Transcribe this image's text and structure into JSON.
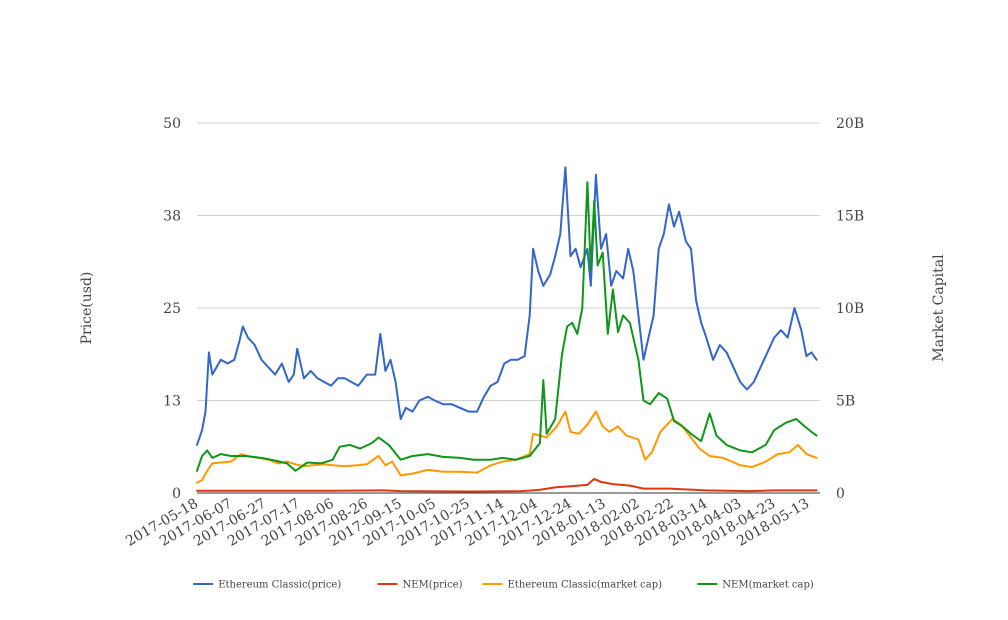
{
  "chart_data": {
    "type": "line",
    "ylabel": "Price(usd)",
    "y2label": "Market Capital",
    "ylim": [
      0,
      50
    ],
    "y2lim": [
      0,
      20000000000
    ],
    "yticks": [
      "0",
      "13",
      "25",
      "38",
      "50"
    ],
    "y2ticks": [
      "0",
      "5B",
      "10B",
      "15B",
      "20B"
    ],
    "xlim": [
      "2017-05-18",
      "2018-05-20"
    ],
    "xticks": [
      "2017-05-18",
      "2017-06-07",
      "2017-06-27",
      "2017-07-17",
      "2017-08-06",
      "2017-08-26",
      "2017-09-15",
      "2017-10-05",
      "2017-10-25",
      "2017-11-14",
      "2017-12-04",
      "2017-12-24",
      "2018-01-13",
      "2018-02-02",
      "2018-02-22",
      "2018-03-14",
      "2018-04-03",
      "2018-04-23",
      "2018-05-13"
    ],
    "grid": true,
    "legend_position": "bottom",
    "series": [
      {
        "name": "Ethereum Classic(price)",
        "axis": "left",
        "color": "#3366cc",
        "points": [
          [
            "2017-05-18",
            6.5
          ],
          [
            "2017-05-21",
            8.5
          ],
          [
            "2017-05-23",
            11
          ],
          [
            "2017-05-25",
            19
          ],
          [
            "2017-05-27",
            16
          ],
          [
            "2017-06-01",
            18
          ],
          [
            "2017-06-05",
            17.5
          ],
          [
            "2017-06-09",
            18
          ],
          [
            "2017-06-12",
            20.5
          ],
          [
            "2017-06-14",
            22.5
          ],
          [
            "2017-06-17",
            21
          ],
          [
            "2017-06-21",
            20
          ],
          [
            "2017-06-25",
            18
          ],
          [
            "2017-06-29",
            17
          ],
          [
            "2017-07-03",
            16
          ],
          [
            "2017-07-07",
            17.5
          ],
          [
            "2017-07-11",
            15
          ],
          [
            "2017-07-14",
            16
          ],
          [
            "2017-07-16",
            19.5
          ],
          [
            "2017-07-20",
            15.5
          ],
          [
            "2017-07-24",
            16.5
          ],
          [
            "2017-07-28",
            15.5
          ],
          [
            "2017-08-01",
            15
          ],
          [
            "2017-08-05",
            14.5
          ],
          [
            "2017-08-09",
            15.5
          ],
          [
            "2017-08-13",
            15.5
          ],
          [
            "2017-08-17",
            15
          ],
          [
            "2017-08-21",
            14.5
          ],
          [
            "2017-08-26",
            16
          ],
          [
            "2017-08-31",
            16
          ],
          [
            "2017-09-03",
            21.5
          ],
          [
            "2017-09-06",
            16.5
          ],
          [
            "2017-09-09",
            18
          ],
          [
            "2017-09-12",
            15
          ],
          [
            "2017-09-15",
            10
          ],
          [
            "2017-09-18",
            11.5
          ],
          [
            "2017-09-22",
            11
          ],
          [
            "2017-09-26",
            12.5
          ],
          [
            "2017-10-01",
            13
          ],
          [
            "2017-10-05",
            12.5
          ],
          [
            "2017-10-10",
            12
          ],
          [
            "2017-10-15",
            12
          ],
          [
            "2017-10-20",
            11.5
          ],
          [
            "2017-10-25",
            11
          ],
          [
            "2017-10-30",
            11
          ],
          [
            "2017-11-03",
            13
          ],
          [
            "2017-11-07",
            14.5
          ],
          [
            "2017-11-11",
            15
          ],
          [
            "2017-11-15",
            17.5
          ],
          [
            "2017-11-19",
            18
          ],
          [
            "2017-11-23",
            18
          ],
          [
            "2017-11-27",
            18.5
          ],
          [
            "2017-11-30",
            24
          ],
          [
            "2017-12-02",
            33
          ],
          [
            "2017-12-05",
            30
          ],
          [
            "2017-12-08",
            28
          ],
          [
            "2017-12-12",
            29.5
          ],
          [
            "2017-12-15",
            32
          ],
          [
            "2017-12-18",
            35
          ],
          [
            "2017-12-21",
            44
          ],
          [
            "2017-12-24",
            32
          ],
          [
            "2017-12-27",
            33
          ],
          [
            "2017-12-30",
            30.5
          ],
          [
            "2018-01-03",
            33
          ],
          [
            "2018-01-05",
            28
          ],
          [
            "2018-01-08",
            43
          ],
          [
            "2018-01-11",
            33
          ],
          [
            "2018-01-14",
            35
          ],
          [
            "2018-01-17",
            28
          ],
          [
            "2018-01-20",
            30
          ],
          [
            "2018-01-24",
            29
          ],
          [
            "2018-01-27",
            33
          ],
          [
            "2018-01-30",
            30
          ],
          [
            "2018-02-02",
            24
          ],
          [
            "2018-02-05",
            18
          ],
          [
            "2018-02-08",
            21
          ],
          [
            "2018-02-11",
            24
          ],
          [
            "2018-02-14",
            33
          ],
          [
            "2018-02-17",
            35
          ],
          [
            "2018-02-20",
            39
          ],
          [
            "2018-02-23",
            36
          ],
          [
            "2018-02-26",
            38
          ],
          [
            "2018-03-02",
            34
          ],
          [
            "2018-03-05",
            33
          ],
          [
            "2018-03-08",
            26
          ],
          [
            "2018-03-11",
            23
          ],
          [
            "2018-03-14",
            21
          ],
          [
            "2018-03-18",
            18
          ],
          [
            "2018-03-22",
            20
          ],
          [
            "2018-03-26",
            19
          ],
          [
            "2018-03-30",
            17
          ],
          [
            "2018-04-03",
            15
          ],
          [
            "2018-04-07",
            14
          ],
          [
            "2018-04-11",
            15
          ],
          [
            "2018-04-15",
            17
          ],
          [
            "2018-04-19",
            19
          ],
          [
            "2018-04-23",
            21
          ],
          [
            "2018-04-27",
            22
          ],
          [
            "2018-05-01",
            21
          ],
          [
            "2018-05-05",
            25
          ],
          [
            "2018-05-09",
            22
          ],
          [
            "2018-05-12",
            18.5
          ],
          [
            "2018-05-15",
            19
          ],
          [
            "2018-05-18",
            18
          ]
        ]
      },
      {
        "name": "NEM(price)",
        "axis": "left",
        "color": "#dc3912",
        "points": [
          [
            "2017-05-18",
            0.3
          ],
          [
            "2017-06-15",
            0.3
          ],
          [
            "2017-08-06",
            0.3
          ],
          [
            "2017-09-05",
            0.35
          ],
          [
            "2017-09-15",
            0.25
          ],
          [
            "2017-10-25",
            0.2
          ],
          [
            "2017-11-25",
            0.25
          ],
          [
            "2017-12-05",
            0.4
          ],
          [
            "2017-12-15",
            0.75
          ],
          [
            "2017-12-24",
            0.9
          ],
          [
            "2018-01-03",
            1.1
          ],
          [
            "2018-01-07",
            1.9
          ],
          [
            "2018-01-11",
            1.5
          ],
          [
            "2018-01-18",
            1.2
          ],
          [
            "2018-01-28",
            1.0
          ],
          [
            "2018-02-05",
            0.6
          ],
          [
            "2018-02-20",
            0.6
          ],
          [
            "2018-03-14",
            0.35
          ],
          [
            "2018-04-08",
            0.25
          ],
          [
            "2018-04-23",
            0.35
          ],
          [
            "2018-05-18",
            0.35
          ]
        ]
      },
      {
        "name": "Ethereum Classic(market cap)",
        "axis": "right",
        "color": "#ff9900",
        "points": [
          [
            "2017-05-18",
            550000000.0
          ],
          [
            "2017-05-21",
            700000000.0
          ],
          [
            "2017-05-24",
            1200000000.0
          ],
          [
            "2017-05-27",
            1600000000.0
          ],
          [
            "2017-06-01",
            1650000000.0
          ],
          [
            "2017-06-07",
            1700000000.0
          ],
          [
            "2017-06-13",
            2100000000.0
          ],
          [
            "2017-06-17",
            2000000000.0
          ],
          [
            "2017-06-23",
            1900000000.0
          ],
          [
            "2017-06-29",
            1800000000.0
          ],
          [
            "2017-07-05",
            1600000000.0
          ],
          [
            "2017-07-10",
            1700000000.0
          ],
          [
            "2017-07-15",
            1550000000.0
          ],
          [
            "2017-07-20",
            1450000000.0
          ],
          [
            "2017-07-25",
            1500000000.0
          ],
          [
            "2017-08-01",
            1550000000.0
          ],
          [
            "2017-08-06",
            1500000000.0
          ],
          [
            "2017-08-13",
            1450000000.0
          ],
          [
            "2017-08-20",
            1500000000.0
          ],
          [
            "2017-08-26",
            1550000000.0
          ],
          [
            "2017-09-02",
            2000000000.0
          ],
          [
            "2017-09-06",
            1500000000.0
          ],
          [
            "2017-09-10",
            1700000000.0
          ],
          [
            "2017-09-15",
            950000000.0
          ],
          [
            "2017-09-22",
            1050000000.0
          ],
          [
            "2017-10-01",
            1250000000.0
          ],
          [
            "2017-10-10",
            1150000000.0
          ],
          [
            "2017-10-20",
            1150000000.0
          ],
          [
            "2017-10-30",
            1100000000.0
          ],
          [
            "2017-11-07",
            1500000000.0
          ],
          [
            "2017-11-14",
            1700000000.0
          ],
          [
            "2017-11-22",
            1800000000.0
          ],
          [
            "2017-11-30",
            2100000000.0
          ],
          [
            "2017-12-02",
            3200000000.0
          ],
          [
            "2017-12-06",
            3100000000.0
          ],
          [
            "2017-12-10",
            3000000000.0
          ],
          [
            "2017-12-16",
            3600000000.0
          ],
          [
            "2017-12-21",
            4400000000.0
          ],
          [
            "2017-12-24",
            3300000000.0
          ],
          [
            "2017-12-29",
            3200000000.0
          ],
          [
            "2018-01-03",
            3700000000.0
          ],
          [
            "2018-01-08",
            4400000000.0
          ],
          [
            "2018-01-12",
            3600000000.0
          ],
          [
            "2018-01-16",
            3300000000.0
          ],
          [
            "2018-01-21",
            3600000000.0
          ],
          [
            "2018-01-26",
            3100000000.0
          ],
          [
            "2018-02-02",
            2900000000.0
          ],
          [
            "2018-02-06",
            1800000000.0
          ],
          [
            "2018-02-10",
            2200000000.0
          ],
          [
            "2018-02-15",
            3300000000.0
          ],
          [
            "2018-02-22",
            4000000000.0
          ],
          [
            "2018-02-27",
            3700000000.0
          ],
          [
            "2018-03-05",
            3000000000.0
          ],
          [
            "2018-03-10",
            2400000000.0
          ],
          [
            "2018-03-16",
            2000000000.0
          ],
          [
            "2018-03-24",
            1900000000.0
          ],
          [
            "2018-04-03",
            1500000000.0
          ],
          [
            "2018-04-10",
            1400000000.0
          ],
          [
            "2018-04-18",
            1700000000.0
          ],
          [
            "2018-04-25",
            2100000000.0
          ],
          [
            "2018-05-02",
            2200000000.0
          ],
          [
            "2018-05-07",
            2600000000.0
          ],
          [
            "2018-05-12",
            2100000000.0
          ],
          [
            "2018-05-18",
            1900000000.0
          ]
        ]
      },
      {
        "name": "NEM(market cap)",
        "axis": "right",
        "color": "#109618",
        "points": [
          [
            "2017-05-18",
            1200000000.0
          ],
          [
            "2017-05-21",
            2000000000.0
          ],
          [
            "2017-05-24",
            2300000000.0
          ],
          [
            "2017-05-27",
            1900000000.0
          ],
          [
            "2017-06-01",
            2100000000.0
          ],
          [
            "2017-06-07",
            2000000000.0
          ],
          [
            "2017-06-15",
            2000000000.0
          ],
          [
            "2017-06-25",
            1900000000.0
          ],
          [
            "2017-07-03",
            1750000000.0
          ],
          [
            "2017-07-10",
            1600000000.0
          ],
          [
            "2017-07-15",
            1200000000.0
          ],
          [
            "2017-07-22",
            1650000000.0
          ],
          [
            "2017-07-30",
            1600000000.0
          ],
          [
            "2017-08-06",
            1800000000.0
          ],
          [
            "2017-08-10",
            2500000000.0
          ],
          [
            "2017-08-16",
            2600000000.0
          ],
          [
            "2017-08-22",
            2400000000.0
          ],
          [
            "2017-08-29",
            2700000000.0
          ],
          [
            "2017-09-02",
            3000000000.0
          ],
          [
            "2017-09-08",
            2600000000.0
          ],
          [
            "2017-09-15",
            1800000000.0
          ],
          [
            "2017-09-22",
            2000000000.0
          ],
          [
            "2017-10-01",
            2100000000.0
          ],
          [
            "2017-10-10",
            1950000000.0
          ],
          [
            "2017-10-20",
            1900000000.0
          ],
          [
            "2017-10-28",
            1800000000.0
          ],
          [
            "2017-11-07",
            1800000000.0
          ],
          [
            "2017-11-14",
            1900000000.0
          ],
          [
            "2017-11-22",
            1800000000.0
          ],
          [
            "2017-11-30",
            2000000000.0
          ],
          [
            "2017-12-06",
            2700000000.0
          ],
          [
            "2017-12-08",
            6100000000.0
          ],
          [
            "2017-12-10",
            3200000000.0
          ],
          [
            "2017-12-15",
            4000000000.0
          ],
          [
            "2017-12-19",
            7500000000.0
          ],
          [
            "2017-12-22",
            9000000000.0
          ],
          [
            "2017-12-25",
            9200000000.0
          ],
          [
            "2017-12-28",
            8600000000.0
          ],
          [
            "2017-12-31",
            10000000000.0
          ],
          [
            "2018-01-03",
            16800000000.0
          ],
          [
            "2018-01-05",
            12000000000.0
          ],
          [
            "2018-01-07",
            15800000000.0
          ],
          [
            "2018-01-09",
            12300000000.0
          ],
          [
            "2018-01-12",
            13000000000.0
          ],
          [
            "2018-01-15",
            8600000000.0
          ],
          [
            "2018-01-18",
            11000000000.0
          ],
          [
            "2018-01-21",
            8700000000.0
          ],
          [
            "2018-01-24",
            9600000000.0
          ],
          [
            "2018-01-28",
            9200000000.0
          ],
          [
            "2018-02-02",
            7200000000.0
          ],
          [
            "2018-02-05",
            5000000000.0
          ],
          [
            "2018-02-09",
            4800000000.0
          ],
          [
            "2018-02-14",
            5400000000.0
          ],
          [
            "2018-02-19",
            5100000000.0
          ],
          [
            "2018-02-23",
            3900000000.0
          ],
          [
            "2018-02-28",
            3600000000.0
          ],
          [
            "2018-03-05",
            3200000000.0
          ],
          [
            "2018-03-11",
            2800000000.0
          ],
          [
            "2018-03-16",
            4300000000.0
          ],
          [
            "2018-03-20",
            3100000000.0
          ],
          [
            "2018-03-26",
            2600000000.0
          ],
          [
            "2018-04-03",
            2300000000.0
          ],
          [
            "2018-04-10",
            2200000000.0
          ],
          [
            "2018-04-18",
            2600000000.0
          ],
          [
            "2018-04-23",
            3400000000.0
          ],
          [
            "2018-04-30",
            3800000000.0
          ],
          [
            "2018-05-06",
            4000000000.0
          ],
          [
            "2018-05-11",
            3600000000.0
          ],
          [
            "2018-05-15",
            3300000000.0
          ],
          [
            "2018-05-18",
            3100000000.0
          ]
        ]
      }
    ]
  }
}
